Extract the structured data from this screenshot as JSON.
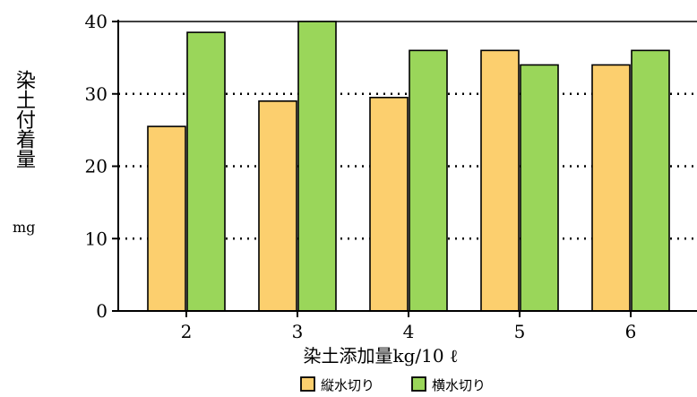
{
  "chart_data": {
    "type": "bar",
    "categories": [
      "2",
      "3",
      "4",
      "5",
      "6"
    ],
    "series": [
      {
        "name": "縦水切り",
        "values": [
          25.5,
          29,
          29.5,
          36,
          34
        ],
        "color": "#FCCF6E"
      },
      {
        "name": "横水切り",
        "values": [
          38.5,
          40,
          36,
          34,
          36
        ],
        "color": "#9AD65A"
      }
    ],
    "title": "",
    "xlabel": "染土添加量kg/10 ℓ",
    "ylabel": "染土付着量",
    "yunit": "mg",
    "ylim": [
      0,
      40
    ],
    "yticks": [
      0,
      10,
      20,
      30,
      40
    ],
    "grid": "dotted",
    "legend_position": "bottom"
  }
}
